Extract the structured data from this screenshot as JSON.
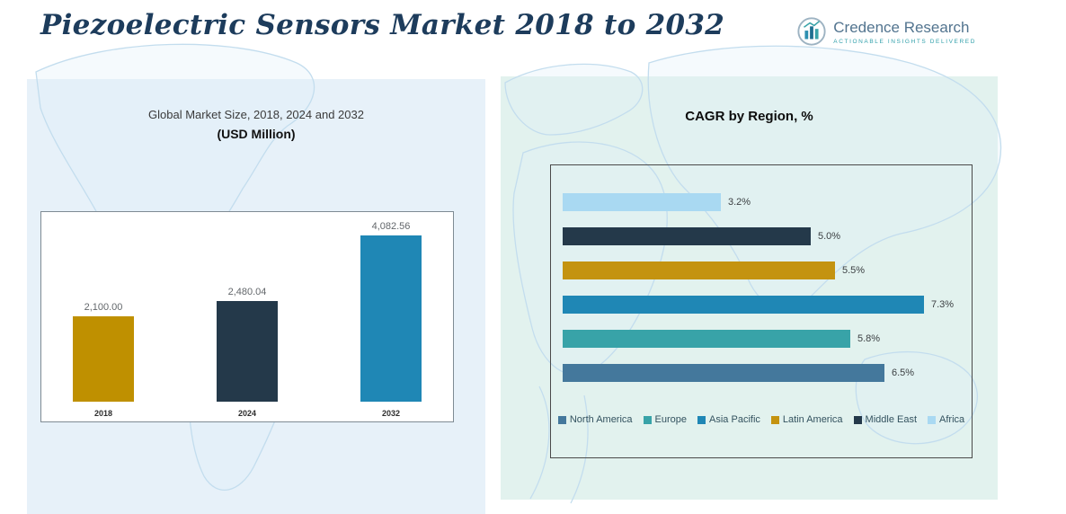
{
  "header": {
    "title": "Piezoelectric Sensors Market 2018 to 2032",
    "logo": {
      "brand": "Credence Research",
      "tagline": "Actionable Insights Delivered"
    }
  },
  "chart_data": [
    {
      "type": "bar",
      "title": "Global Market Size, 2018, 2024 and 2032",
      "subtitle": "(USD Million)",
      "categories": [
        "2018",
        "2024",
        "2032"
      ],
      "values": [
        2100.0,
        2480.04,
        4082.56
      ],
      "data_labels": [
        "2,100.00",
        "2,480.04",
        "4,082.56"
      ],
      "colors": [
        "#bf9000",
        "#24394a",
        "#1f87b5"
      ],
      "xlabel": "",
      "ylabel": "",
      "ylim": [
        0,
        4300
      ],
      "grid": false,
      "legend_position": "none"
    },
    {
      "type": "bar-horizontal",
      "title": "CAGR by Region, %",
      "categories": [
        "Africa",
        "Middle East",
        "Latin America",
        "Asia Pacific",
        "Europe",
        "North America"
      ],
      "values": [
        3.2,
        5.0,
        5.5,
        7.3,
        5.8,
        6.5
      ],
      "data_labels": [
        "3.2%",
        "5.0%",
        "5.5%",
        "7.3%",
        "5.8%",
        "6.5%"
      ],
      "colors": [
        "#a9d9f2",
        "#24394a",
        "#c49310",
        "#1f87b5",
        "#38a3a8",
        "#44789c"
      ],
      "xlabel": "",
      "ylabel": "",
      "xlim": [
        0,
        7.8
      ],
      "grid": false,
      "legend_position": "bottom",
      "legend": [
        {
          "label": "North America",
          "color": "#44789c"
        },
        {
          "label": "Europe",
          "color": "#38a3a8"
        },
        {
          "label": "Asia Pacific",
          "color": "#1f87b5"
        },
        {
          "label": "Latin America",
          "color": "#c49310"
        },
        {
          "label": "Middle East",
          "color": "#24394a"
        },
        {
          "label": "Africa",
          "color": "#a9d9f2"
        }
      ]
    }
  ]
}
